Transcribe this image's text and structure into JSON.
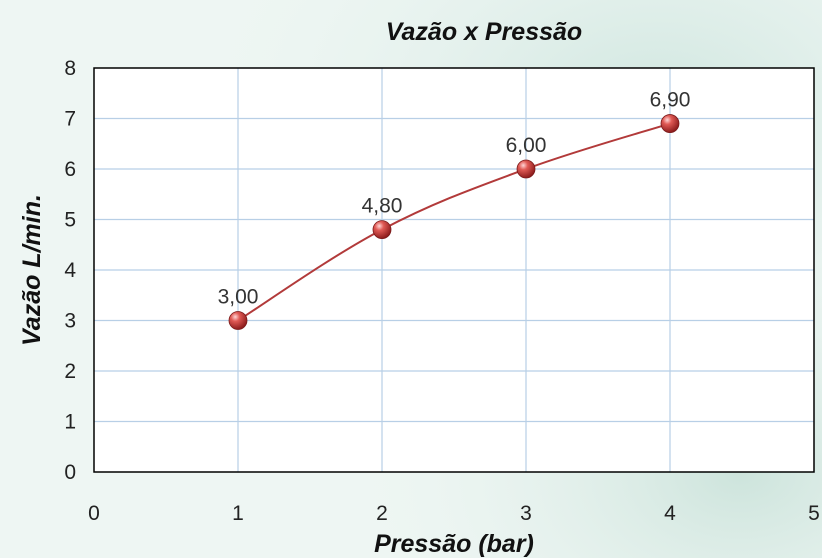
{
  "chart_data": {
    "type": "line",
    "title": "Vazão x Pressão",
    "xlabel": "Pressão (bar)",
    "ylabel": "Vazão L/min.",
    "xlim": [
      0,
      5
    ],
    "ylim": [
      0,
      8
    ],
    "x_ticks": [
      "0",
      "1",
      "2",
      "3",
      "4",
      "5"
    ],
    "y_ticks": [
      "0",
      "1",
      "2",
      "3",
      "4",
      "5",
      "6",
      "7",
      "8"
    ],
    "grid": true,
    "legend": "none",
    "series": [
      {
        "x": [
          1,
          2,
          3,
          4
        ],
        "y": [
          3.0,
          4.8,
          6.0,
          6.9
        ],
        "labels": [
          "3,00",
          "4,80",
          "6,00",
          "6,90"
        ],
        "color": "#b23a3a"
      }
    ],
    "colors": {
      "background": "#eef6f3",
      "plot_background": "#ffffff",
      "grid": "#b8cfe6",
      "line": "#b23a3a",
      "marker": "#c9302c"
    }
  }
}
